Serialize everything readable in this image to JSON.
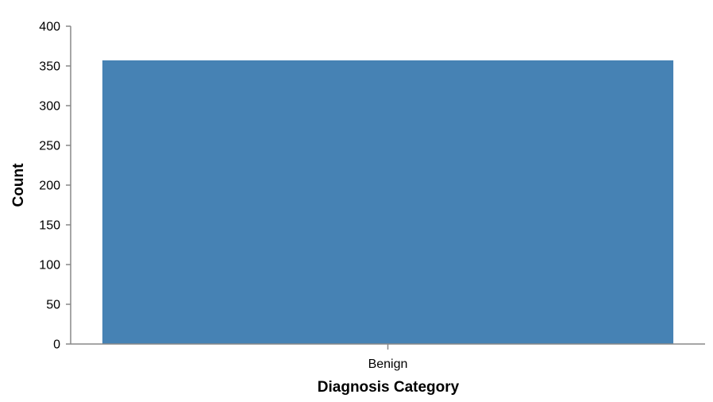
{
  "chart_data": {
    "type": "bar",
    "categories": [
      "Benign"
    ],
    "values": [
      357
    ],
    "xlabel": "Diagnosis Category",
    "ylabel": "Count",
    "ylim": [
      0,
      400
    ],
    "yticks": [
      0,
      50,
      100,
      150,
      200,
      250,
      300,
      350,
      400
    ],
    "grid": false,
    "bar_color": "#4682b4"
  }
}
